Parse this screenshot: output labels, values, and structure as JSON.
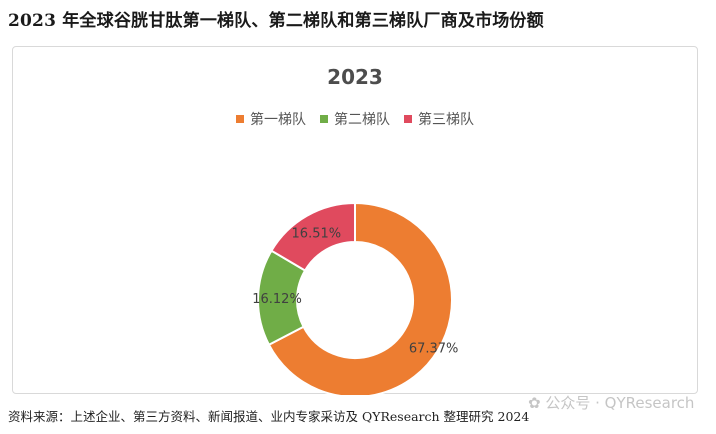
{
  "page_title": "2023 年全球谷胱甘肽第一梯队、第二梯队和第三梯队厂商及市场份额",
  "footer_source": "资料来源：上述企业、第三方资料、新闻报道、业内专家采访及 QYResearch 整理研究 2024",
  "watermark": {
    "icon": "wechat-icon",
    "text": "公众号 · QYResearch"
  },
  "chart_data": {
    "type": "pie",
    "variant": "donut",
    "title": "2023",
    "legend_position": "top",
    "categories": [
      "第一梯队",
      "第二梯队",
      "第三梯队"
    ],
    "values": [
      67.37,
      16.12,
      16.51
    ],
    "value_labels": [
      "67.37%",
      "16.12%",
      "16.51%"
    ],
    "colors": [
      "#ED7D31",
      "#70AD47",
      "#E04A5E"
    ],
    "start_angle_deg": 0,
    "direction": "clockwise"
  }
}
